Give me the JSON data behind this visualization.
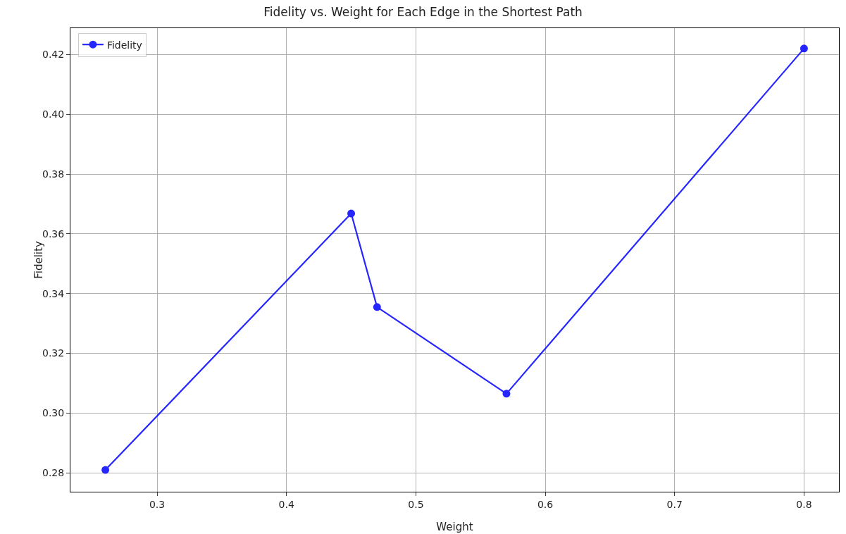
{
  "chart_data": {
    "type": "line",
    "title": "Fidelity vs. Weight for Each Edge in the Shortest Path",
    "xlabel": "Weight",
    "ylabel": "Fidelity",
    "x": [
      0.26,
      0.45,
      0.47,
      0.57,
      0.8
    ],
    "series": [
      {
        "name": "Fidelity",
        "color": "#0000ff",
        "values": [
          0.281,
          0.3668,
          0.3355,
          0.3065,
          0.422
        ]
      }
    ],
    "xlim": [
      0.233,
      0.827
    ],
    "xticks": [
      0.3,
      0.4,
      0.5,
      0.6,
      0.7,
      0.8
    ],
    "ylim": [
      0.2737,
      0.4288
    ],
    "yticks": [
      {
        "value": 0.28,
        "label": "0.28"
      },
      {
        "value": 0.3,
        "label": "0.30"
      },
      {
        "value": 0.32,
        "label": "0.32"
      },
      {
        "value": 0.34,
        "label": "0.34"
      },
      {
        "value": 0.36,
        "label": "0.36"
      },
      {
        "value": 0.38,
        "label": "0.38"
      },
      {
        "value": 0.4,
        "label": "0.40"
      },
      {
        "value": 0.42,
        "label": "0.42"
      }
    ],
    "grid": true,
    "legend": "top left",
    "marker": "circle",
    "line_style": "solid"
  }
}
